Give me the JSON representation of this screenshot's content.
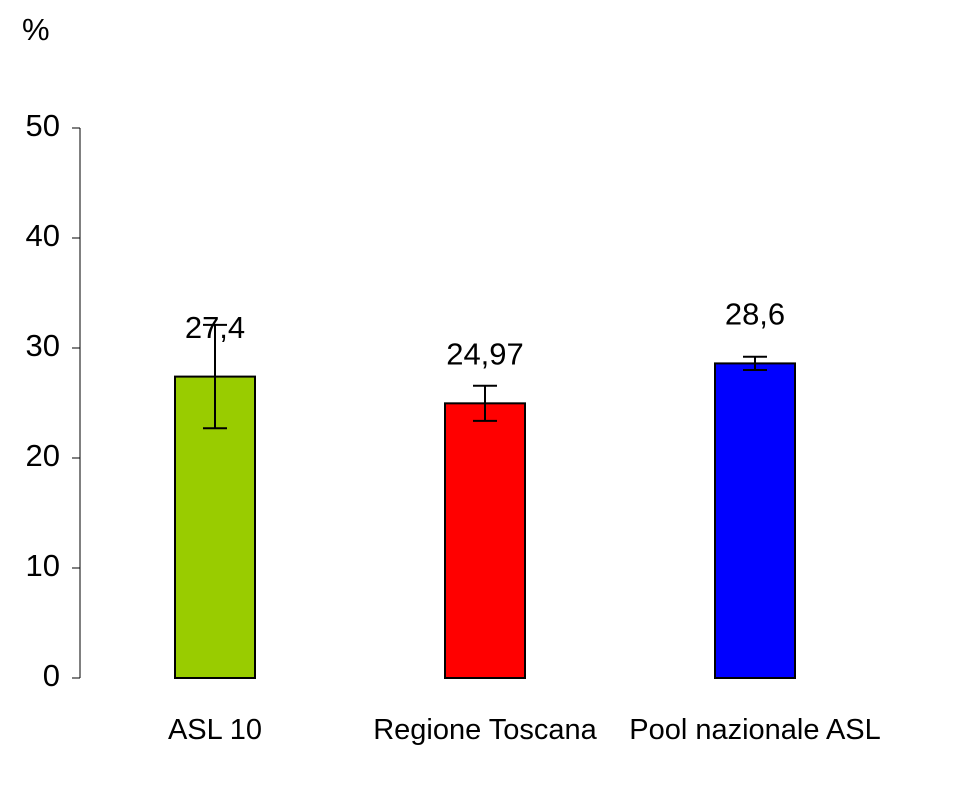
{
  "chart_data": {
    "type": "bar",
    "y_label": "%",
    "categories": [
      "ASL 10",
      "Regione Toscana",
      "Pool nazionale ASL"
    ],
    "values": [
      27.4,
      24.97,
      28.6
    ],
    "value_labels": [
      "27,4",
      "24,97",
      "28,6"
    ],
    "errors": [
      4.7,
      1.6,
      0.6
    ],
    "colors": [
      "#99cc00",
      "#ff0000",
      "#0000ff"
    ],
    "ylim": [
      0,
      50
    ],
    "yticks": [
      0,
      10,
      20,
      30,
      40,
      50
    ],
    "grid": false
  }
}
